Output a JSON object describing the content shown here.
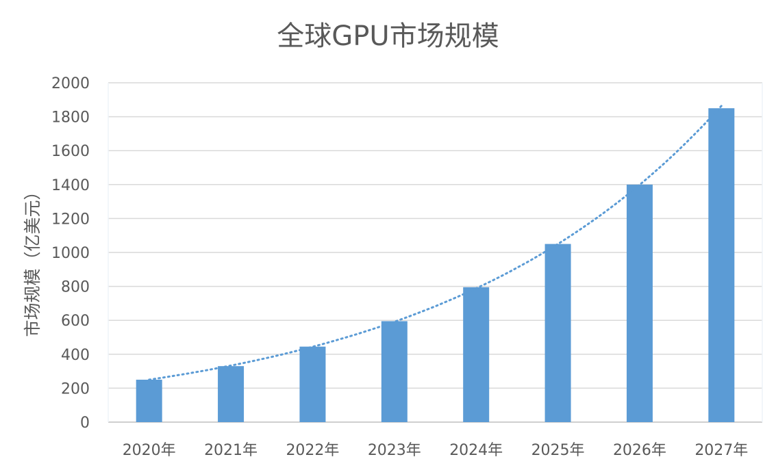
{
  "chart_data": {
    "type": "bar",
    "title": "全球GPU市场规模",
    "ylabel": "市场规模（亿美元）",
    "xlabel": "",
    "categories": [
      "2020年",
      "2021年",
      "2022年",
      "2023年",
      "2024年",
      "2025年",
      "2026年",
      "2027年"
    ],
    "values": [
      250,
      330,
      445,
      595,
      795,
      1050,
      1400,
      1850
    ],
    "ylim": [
      0,
      2000
    ],
    "yticks": [
      0,
      200,
      400,
      600,
      800,
      1000,
      1200,
      1400,
      1600,
      1800,
      2000
    ],
    "trendline": "exponential, dotted",
    "grid": true,
    "legend": "none",
    "colors": {
      "bar": "#5b9bd5",
      "trend": "#5b9bd5",
      "grid": "#d9d9d9",
      "text": "#595959"
    }
  }
}
